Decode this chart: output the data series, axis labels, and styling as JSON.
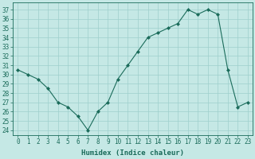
{
  "x": [
    0,
    1,
    2,
    3,
    4,
    5,
    6,
    7,
    8,
    9,
    10,
    11,
    12,
    13,
    14,
    15,
    16,
    17,
    18,
    19,
    20,
    21,
    22,
    23
  ],
  "y": [
    30.5,
    30.0,
    29.5,
    28.5,
    27.0,
    26.5,
    25.5,
    24.0,
    26.0,
    27.0,
    29.5,
    31.0,
    32.5,
    34.0,
    34.5,
    35.0,
    35.5,
    37.0,
    36.5,
    37.0,
    36.5,
    30.5,
    26.5,
    27.0
  ],
  "line_color": "#1a6b5a",
  "marker": "D",
  "marker_size": 2.0,
  "bg_color": "#c5e8e5",
  "grid_color": "#9ecfcc",
  "xlabel": "Humidex (Indice chaleur)",
  "ylabel_ticks": [
    24,
    25,
    26,
    27,
    28,
    29,
    30,
    31,
    32,
    33,
    34,
    35,
    36,
    37
  ],
  "ylim": [
    23.5,
    37.8
  ],
  "xlim": [
    -0.5,
    23.5
  ],
  "tick_color": "#1a6b5a",
  "label_fontsize": 6.5,
  "tick_fontsize": 5.5
}
